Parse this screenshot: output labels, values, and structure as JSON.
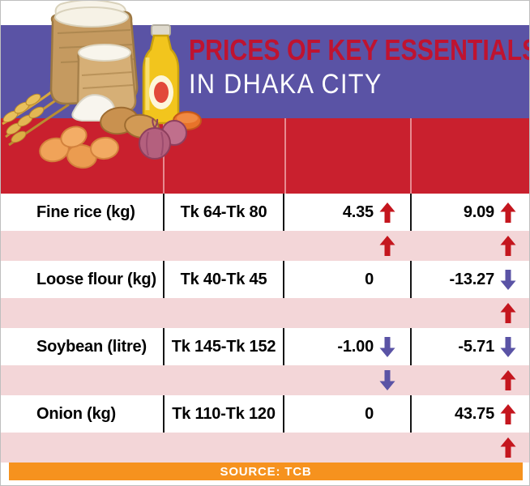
{
  "title": {
    "line1": "PRICES OF KEY ESSENTIALS",
    "line2": "IN DHAKA CITY"
  },
  "footer": {
    "source_label": "SOURCE: TCB"
  },
  "colors": {
    "banner": "#5a53a5",
    "title_text": "#bf1330",
    "table_header": "#c9202e",
    "strip": "#f3d6d8",
    "source_bar": "#f6921e",
    "up_arrow": "#c4161e",
    "down_arrow": "#5a53a5"
  },
  "icons": {
    "up": "up-arrow-icon",
    "down": "down-arrow-icon",
    "illustration": [
      "wheat-icon",
      "rice-sack-icon",
      "flour-sack-icon",
      "oil-bottle-icon",
      "flour-pile-icon",
      "potatoes-icon",
      "onions-icon",
      "lentils-icon",
      "eggs-icon"
    ]
  },
  "chart_data": {
    "type": "table",
    "title": "PRICES OF KEY ESSENTIALS IN DHAKA CITY",
    "source": "SOURCE: TCB",
    "columns": [
      "item",
      "price_range",
      "change_pct_a",
      "change_pct_b"
    ],
    "rows": [
      {
        "item": "Fine rice (kg)",
        "price_range": "Tk 64-Tk 80",
        "a": "4.35",
        "a_dir": "up",
        "b": "9.09",
        "b_dir": "up",
        "strip_a_dir": "up",
        "strip_b_dir": "up"
      },
      {
        "item": "Loose flour (kg)",
        "price_range": "Tk 40-Tk 45",
        "a": "0",
        "a_dir": "none",
        "b": "-13.27",
        "b_dir": "down",
        "strip_a_dir": "none",
        "strip_b_dir": "up"
      },
      {
        "item": "Soybean (litre)",
        "price_range": "Tk 145-Tk 152",
        "a": "-1.00",
        "a_dir": "down",
        "b": "-5.71",
        "b_dir": "down",
        "strip_a_dir": "down",
        "strip_b_dir": "up"
      },
      {
        "item": "Onion (kg)",
        "price_range": "Tk 110-Tk 120",
        "a": "0",
        "a_dir": "none",
        "b": "43.75",
        "b_dir": "up",
        "strip_a_dir": "none",
        "strip_b_dir": "up"
      }
    ]
  }
}
